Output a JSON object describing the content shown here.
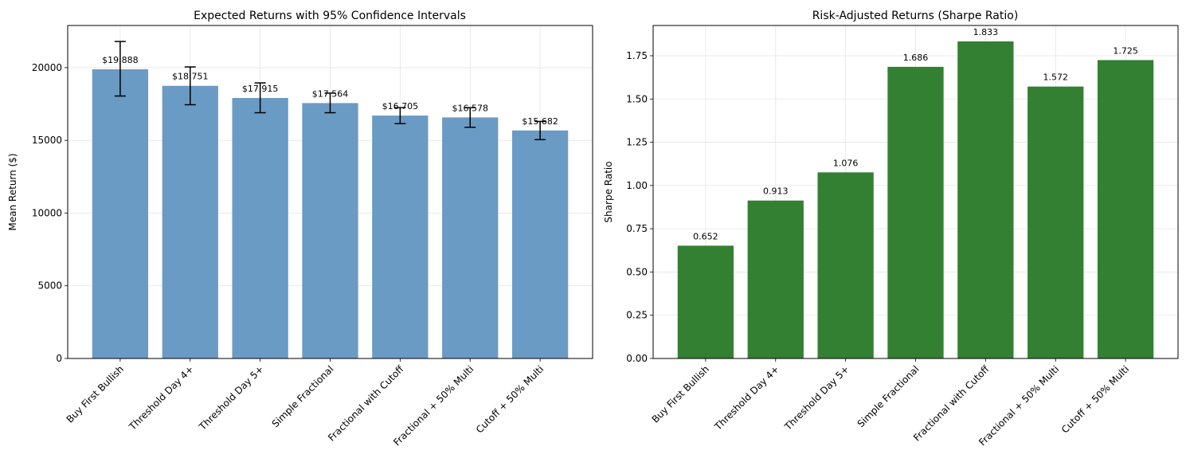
{
  "chart_data": [
    {
      "type": "bar",
      "title": "Expected Returns with 95% Confidence Intervals",
      "xlabel": "",
      "ylabel": "Mean Return ($)",
      "categories": [
        "Buy First Bullish",
        "Threshold Day 4+",
        "Threshold Day 5+",
        "Simple Fractional",
        "Fractional with Cutoff",
        "Fractional + 50% Multi",
        "Cutoff + 50% Multi"
      ],
      "values": [
        19888,
        18751,
        17915,
        17564,
        16705,
        16578,
        15682
      ],
      "ci_low": [
        18050,
        17450,
        16900,
        16900,
        16150,
        15900,
        15050
      ],
      "ci_high": [
        21800,
        20050,
        18950,
        18250,
        17250,
        17250,
        16300
      ],
      "data_labels": [
        "$19,888",
        "$18,751",
        "$17,915",
        "$17,564",
        "$16,705",
        "$16,578",
        "$15,682"
      ],
      "ylim": [
        0,
        22900
      ],
      "yticks": [
        0,
        5000,
        10000,
        15000,
        20000
      ],
      "ytick_labels": [
        "0",
        "5000",
        "10000",
        "15000",
        "20000"
      ],
      "grid": true,
      "color": "#6a9bc4",
      "error_color": "#000000"
    },
    {
      "type": "bar",
      "title": "Risk-Adjusted Returns (Sharpe Ratio)",
      "xlabel": "",
      "ylabel": "Sharpe Ratio",
      "categories": [
        "Buy First Bullish",
        "Threshold Day 4+",
        "Threshold Day 5+",
        "Simple Fractional",
        "Fractional with Cutoff",
        "Fractional + 50% Multi",
        "Cutoff + 50% Multi"
      ],
      "values": [
        0.652,
        0.913,
        1.076,
        1.686,
        1.833,
        1.572,
        1.725
      ],
      "data_labels": [
        "0.652",
        "0.913",
        "1.076",
        "1.686",
        "1.833",
        "1.572",
        "1.725"
      ],
      "ylim": [
        0,
        1.925
      ],
      "yticks": [
        0,
        0.25,
        0.5,
        0.75,
        1.0,
        1.25,
        1.5,
        1.75
      ],
      "ytick_labels": [
        "0.00",
        "0.25",
        "0.50",
        "0.75",
        "1.00",
        "1.25",
        "1.50",
        "1.75"
      ],
      "grid": true,
      "color": "#338033"
    }
  ]
}
